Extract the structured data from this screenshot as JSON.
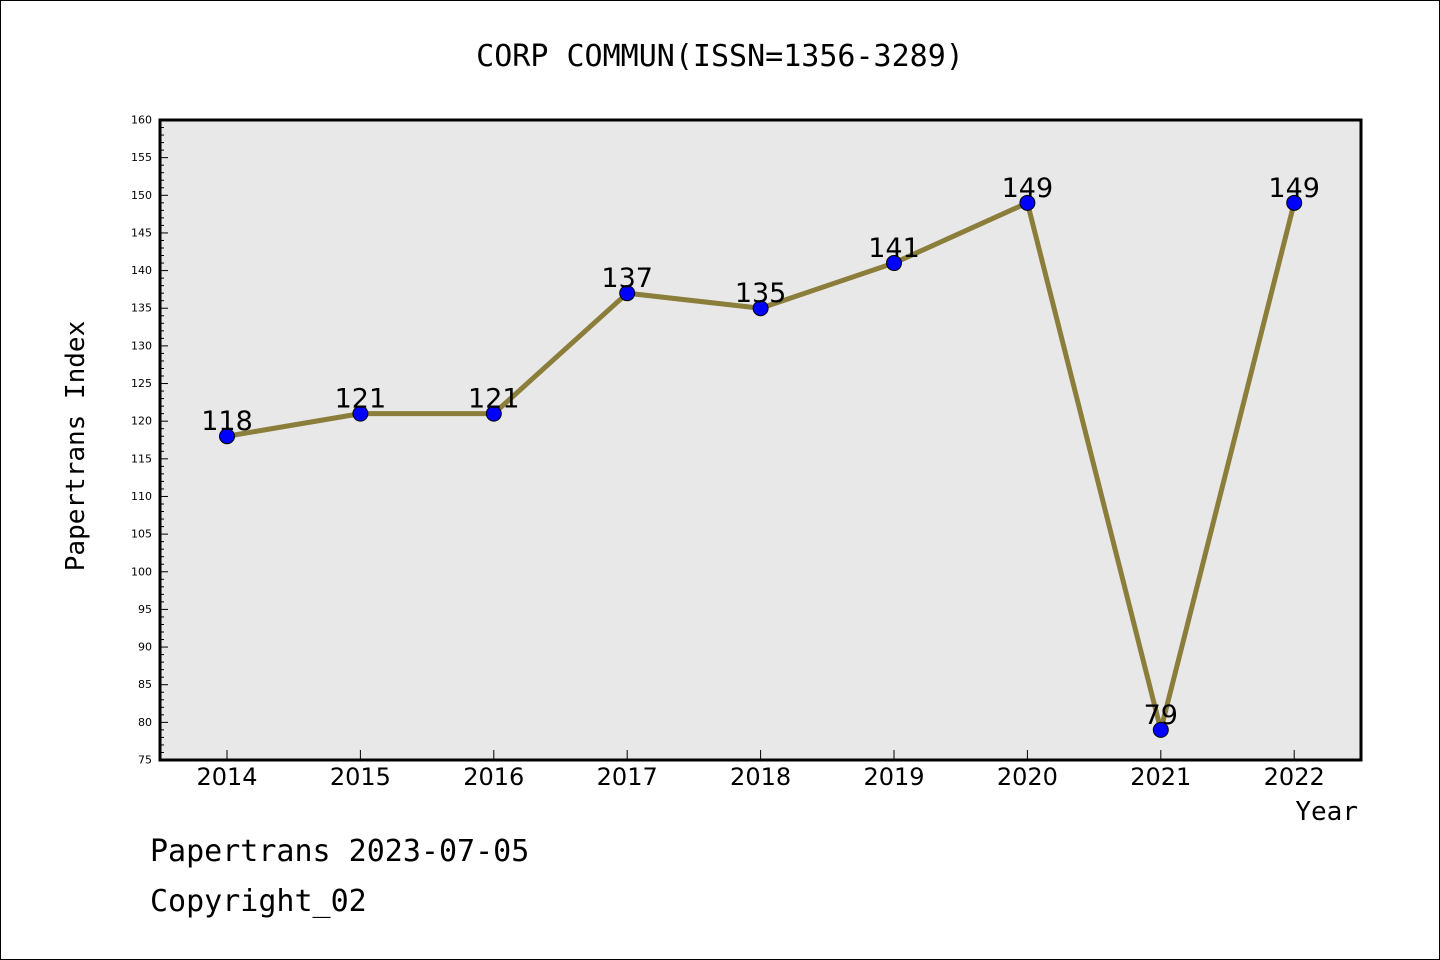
{
  "chart_data": {
    "type": "line",
    "title": "CORP COMMUN(ISSN=1356-3289)",
    "xlabel": "Year",
    "ylabel": "Papertrans Index",
    "categories": [
      "2014",
      "2015",
      "2016",
      "2017",
      "2018",
      "2019",
      "2020",
      "2021",
      "2022"
    ],
    "series": [
      {
        "values": [
          118,
          121,
          121,
          137,
          135,
          141,
          149,
          79,
          149
        ]
      }
    ],
    "data_labels": [
      "118",
      "121",
      "121",
      "137",
      "135",
      "141",
      "149",
      "79",
      "149"
    ],
    "ylim": [
      75,
      160
    ],
    "y_major_ticks": [
      "75",
      "80",
      "85",
      "90",
      "95",
      "100",
      "105",
      "110",
      "115",
      "120",
      "125",
      "130",
      "135",
      "140",
      "145",
      "150",
      "155",
      "160"
    ],
    "grid": false,
    "line_color": "#8b7d3a",
    "marker_color": "#0000ff",
    "plot_background": "#e8e8e8"
  },
  "footer": {
    "date_line": "Papertrans 2023-07-05",
    "copyright_line": "Copyright_02"
  }
}
